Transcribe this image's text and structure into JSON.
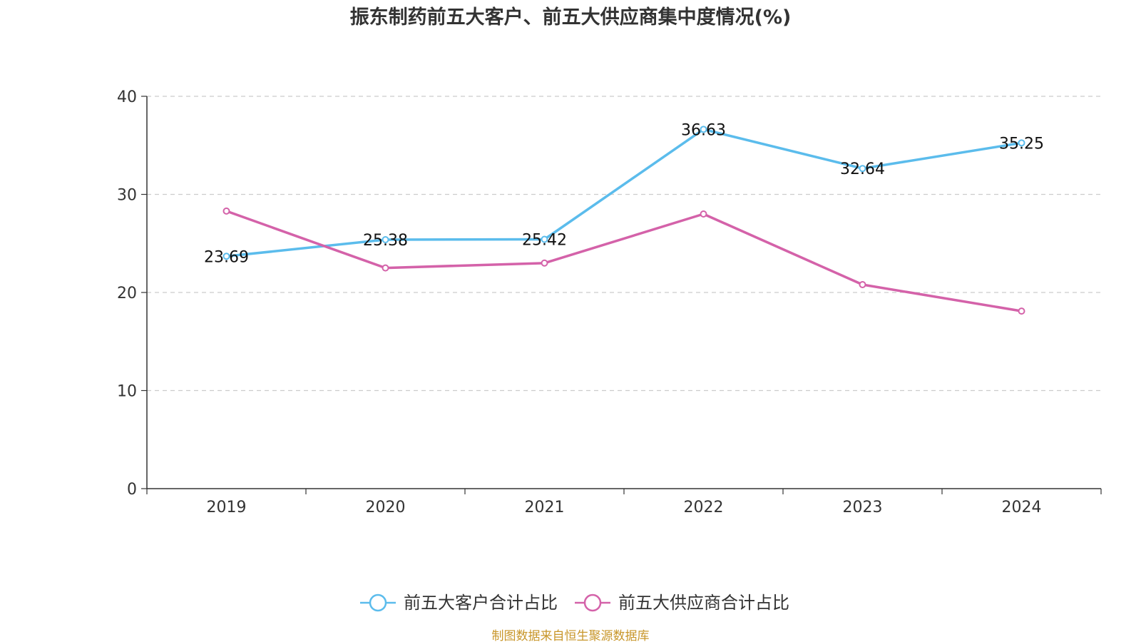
{
  "chart_data": {
    "type": "line",
    "title": "振东制药前五大客户、前五大供应商集中度情况(%)",
    "categories": [
      "2019",
      "2020",
      "2021",
      "2022",
      "2023",
      "2024"
    ],
    "ylim": [
      0,
      40
    ],
    "yticks": [
      0,
      10,
      20,
      30,
      40
    ],
    "grid": true,
    "legend_position": "bottom",
    "series": [
      {
        "name": "前五大客户合计占比",
        "color": "#5bbcec",
        "values": [
          23.69,
          25.38,
          25.42,
          36.63,
          32.64,
          35.25
        ],
        "labels": [
          "23.69",
          "25.38",
          "25.42",
          "36.63",
          "32.64",
          "35.25"
        ],
        "show_labels": true
      },
      {
        "name": "前五大供应商合计占比",
        "color": "#d462a9",
        "values": [
          28.3,
          22.5,
          23.0,
          28.0,
          20.8,
          18.1
        ],
        "show_labels": false
      }
    ]
  },
  "source": {
    "text": "制图数据来自恒生聚源数据库",
    "color": "#c8962a"
  }
}
